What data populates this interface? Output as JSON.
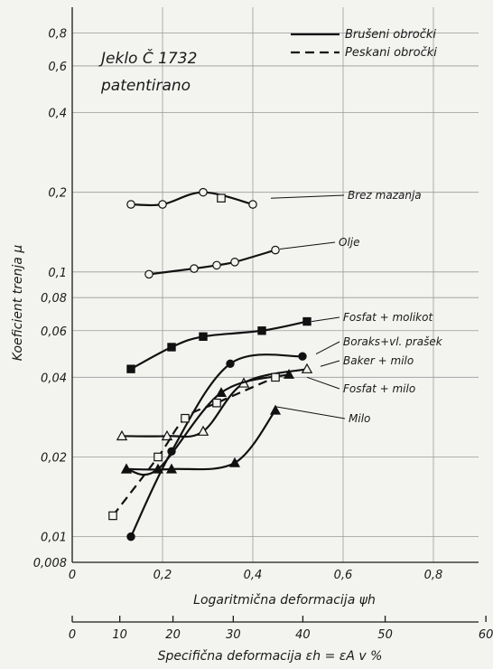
{
  "chart_data": {
    "type": "line",
    "title": "Jeklo Č 1732",
    "subtitle": "patentirano",
    "xlabel": "Logaritmična deformacija ψh",
    "x2label": "Specifična deformacija εh = εA v %",
    "ylabel": "Koeficient trenja μ",
    "y_scale": "log",
    "xlim": [
      0,
      0.9
    ],
    "ylim": [
      0.008,
      1.0
    ],
    "x_ticks": [
      "0",
      "0,2",
      "0,4",
      "0,6",
      "0,8"
    ],
    "x2_ticks": [
      "0",
      "10",
      "20",
      "30",
      "40",
      "50",
      "60"
    ],
    "y_ticks": [
      "0,008",
      "0,01",
      "0,02",
      "0,04",
      "0,06",
      "0,08",
      "0,1",
      "0,2",
      "0,4",
      "0,6",
      "0,8"
    ],
    "legend": {
      "position": "top-right",
      "entries": [
        {
          "label": "Brušeni obročki",
          "style": "solid"
        },
        {
          "label": "Peskani obročki",
          "style": "dashed"
        }
      ]
    },
    "series": [
      {
        "name": "Brez mazanja",
        "marker": "open-circle",
        "x": [
          0.13,
          0.2,
          0.29,
          0.4
        ],
        "y": [
          0.18,
          0.18,
          0.2,
          0.18
        ]
      },
      {
        "name": "Brez mazanja (square)",
        "marker": "open-square",
        "x": [
          0.33
        ],
        "y": [
          0.19
        ]
      },
      {
        "name": "Olje",
        "marker": "open-circle",
        "x": [
          0.17,
          0.27,
          0.32,
          0.36,
          0.45
        ],
        "y": [
          0.098,
          0.103,
          0.106,
          0.109,
          0.121
        ]
      },
      {
        "name": "Fosfat + molikot",
        "marker": "filled-square",
        "x": [
          0.13,
          0.22,
          0.29,
          0.42,
          0.52
        ],
        "y": [
          0.043,
          0.052,
          0.057,
          0.06,
          0.065
        ]
      },
      {
        "name": "Boraks + vl. prašek",
        "marker": "filled-circle",
        "x": [
          0.13,
          0.22,
          0.35,
          0.51
        ],
        "y": [
          0.01,
          0.021,
          0.045,
          0.048
        ]
      },
      {
        "name": "Baker + milo",
        "marker": "open-triangle",
        "x": [
          0.11,
          0.21,
          0.29,
          0.38,
          0.52
        ],
        "y": [
          0.024,
          0.024,
          0.025,
          0.038,
          0.043
        ]
      },
      {
        "name": "Fosfat + milo",
        "marker": "filled-triangle",
        "x": [
          0.12,
          0.19,
          0.33,
          0.48
        ],
        "y": [
          0.018,
          0.018,
          0.035,
          0.041
        ]
      },
      {
        "name": "Milo",
        "marker": "filled-triangle",
        "x": [
          0.12,
          0.22,
          0.36,
          0.45
        ],
        "y": [
          0.018,
          0.018,
          0.019,
          0.03
        ]
      },
      {
        "name": "Peskani (dashed)",
        "marker": "open-square",
        "x": [
          0.09,
          0.19,
          0.25,
          0.32,
          0.45
        ],
        "y": [
          0.012,
          0.02,
          0.028,
          0.032,
          0.04
        ]
      }
    ],
    "annotations": [
      "Brez mazanja",
      "Olje",
      "Fosfat + molikot",
      "Boraks+vl. prašek",
      "Baker + milo",
      "Fosfat + milo",
      "Milo"
    ]
  }
}
